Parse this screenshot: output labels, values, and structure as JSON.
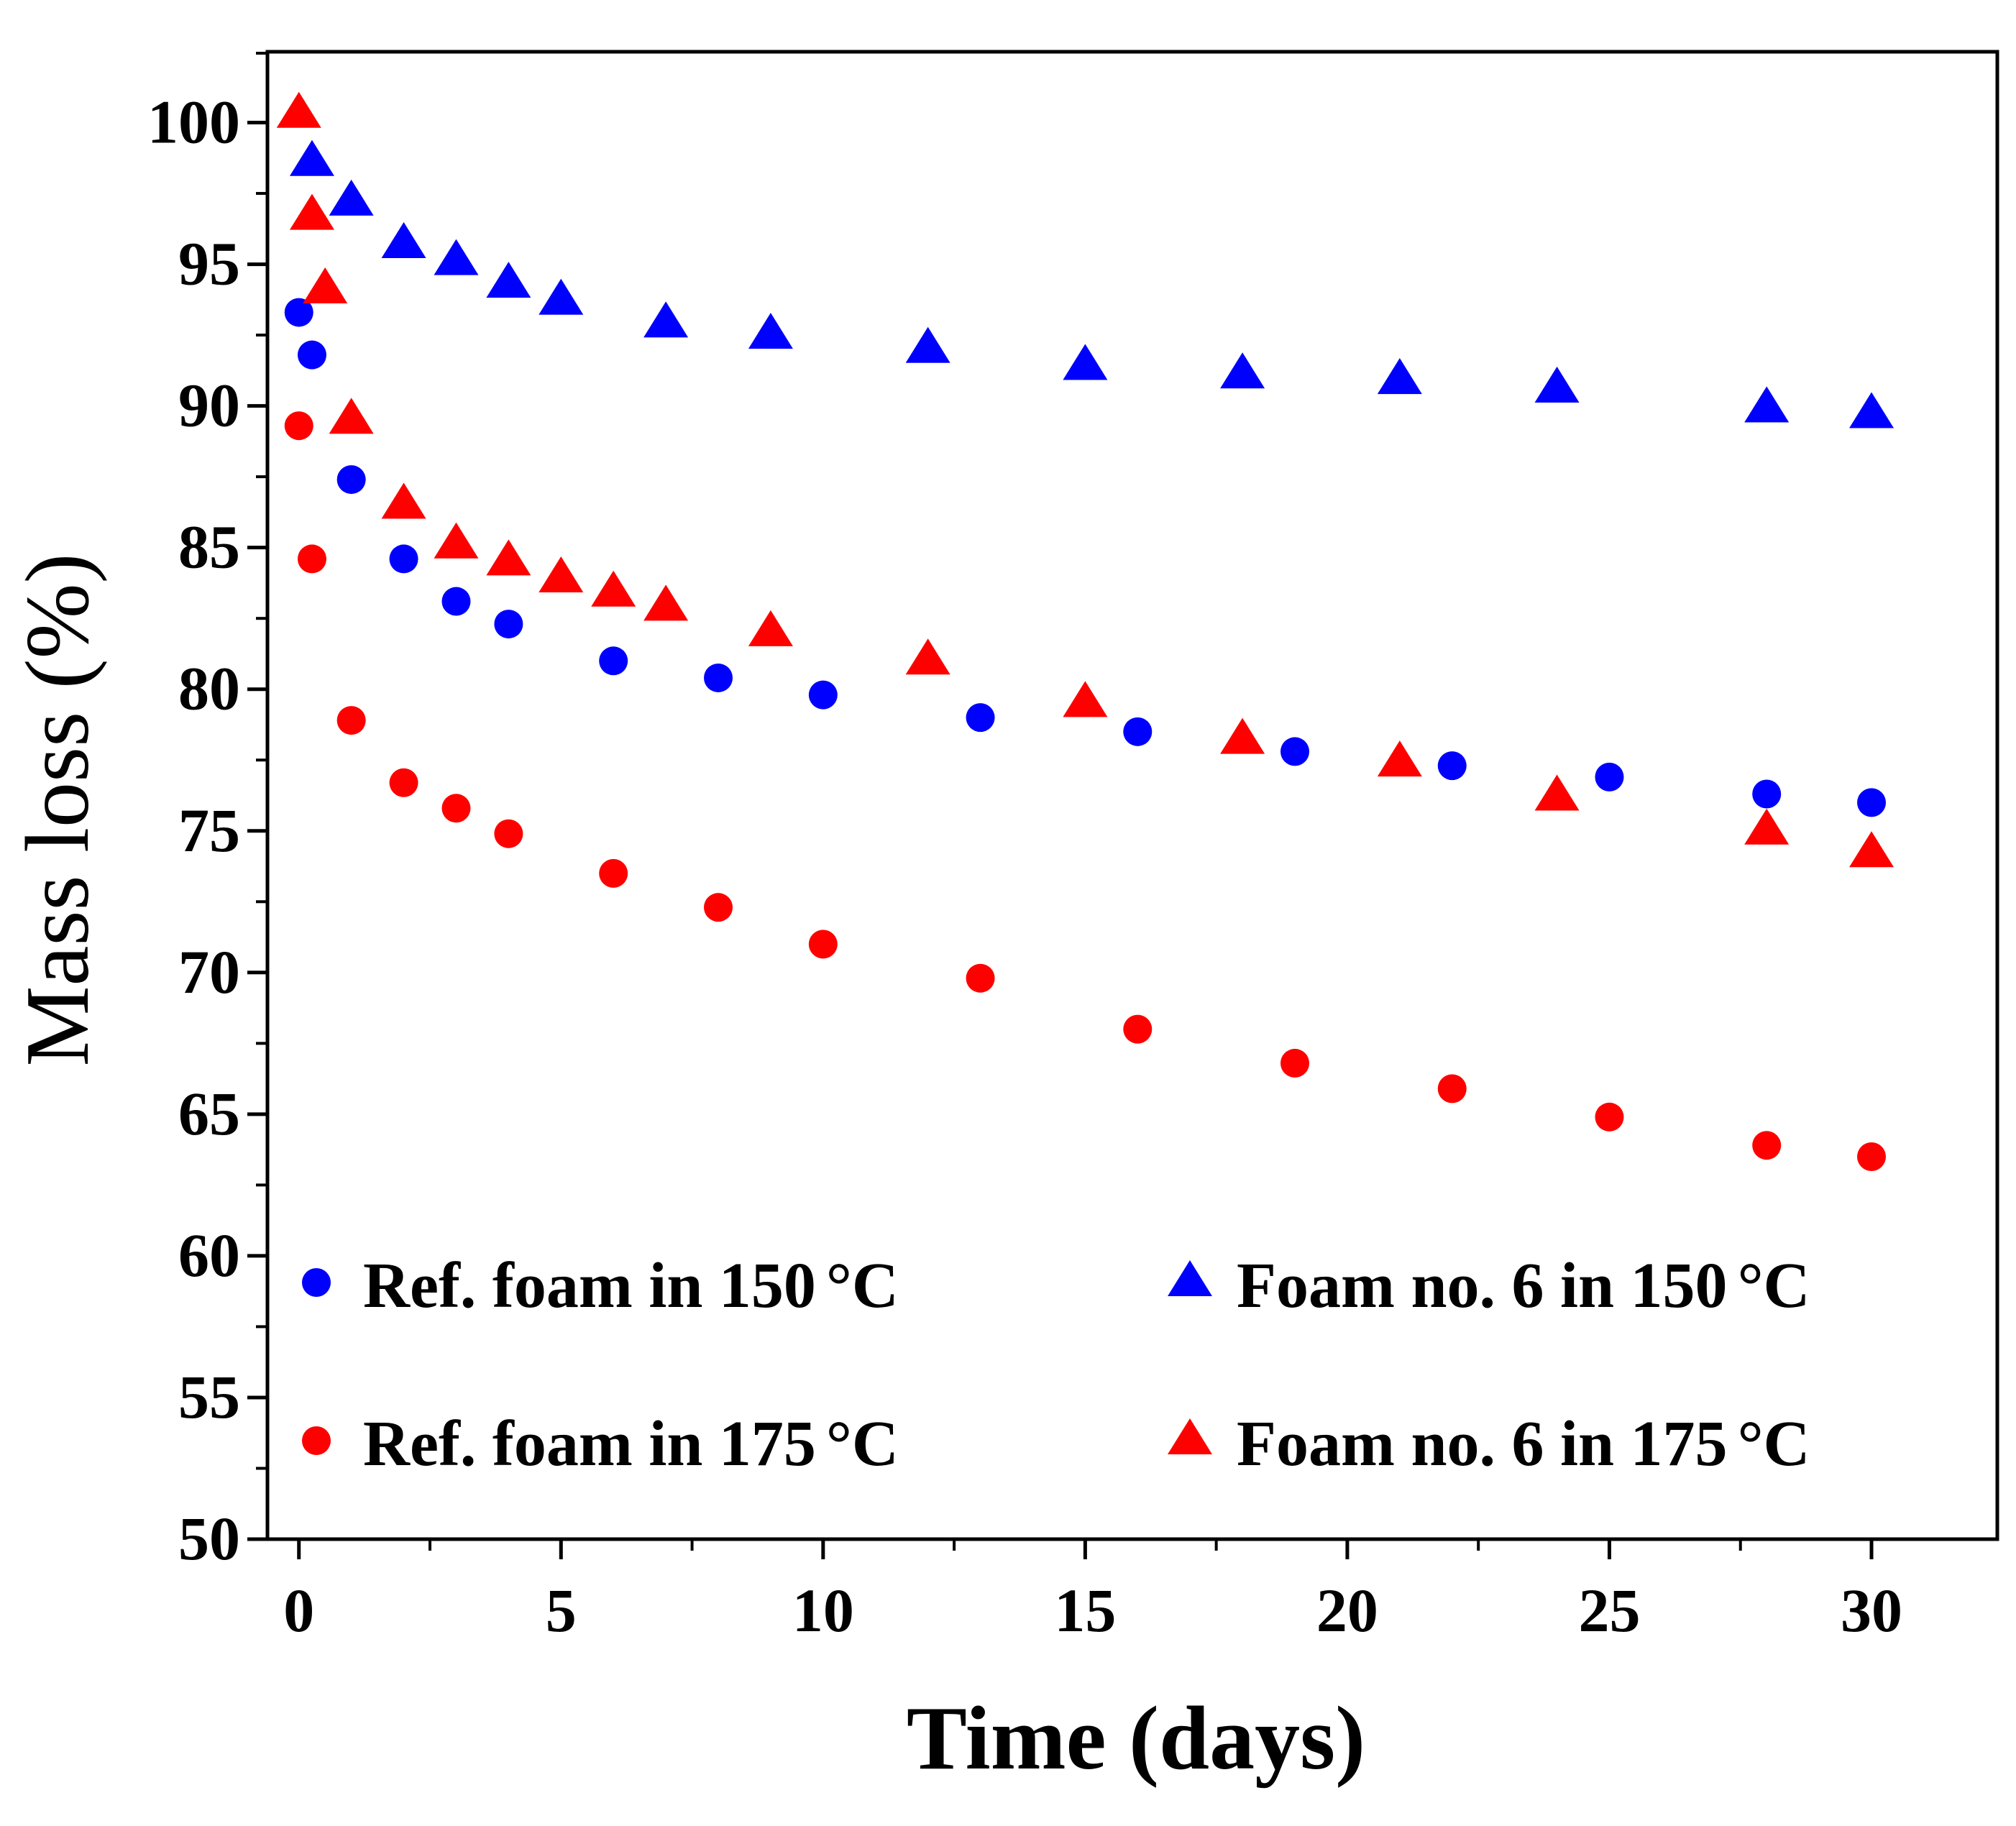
{
  "chart_data": {
    "type": "scatter",
    "title": "",
    "xlabel": "Time (days)",
    "ylabel": "Mass loss (%)",
    "xlim": [
      -0.6,
      32.4
    ],
    "ylim": [
      50,
      102.5
    ],
    "xticks": [
      0,
      5,
      10,
      15,
      20,
      25,
      30
    ],
    "yticks": [
      50,
      55,
      60,
      65,
      70,
      75,
      80,
      85,
      90,
      95,
      100
    ],
    "grid": false,
    "legend_position": "bottom-inside",
    "series": [
      {
        "name": "Ref. foam in 150",
        "unit": "°C",
        "marker": "circle",
        "color": "#0000ff",
        "x": [
          0,
          0.25,
          1,
          2,
          3,
          4,
          6,
          8,
          10,
          13,
          16,
          19,
          22,
          25,
          28,
          30
        ],
        "y": [
          93.3,
          91.8,
          87.4,
          84.6,
          83.1,
          82.3,
          81.0,
          80.4,
          79.8,
          79.0,
          78.5,
          77.8,
          77.3,
          76.9,
          76.3,
          76.0
        ]
      },
      {
        "name": "Foam no. 6 in 150",
        "unit": "°C",
        "marker": "triangle",
        "color": "#0000ff",
        "x": [
          0.25,
          1,
          2,
          3,
          4,
          5,
          7,
          9,
          12,
          15,
          18,
          21,
          24,
          28,
          30
        ],
        "y": [
          98.6,
          97.2,
          95.7,
          95.1,
          94.3,
          93.7,
          92.9,
          92.5,
          92.0,
          91.4,
          91.1,
          90.9,
          90.6,
          89.9,
          89.7
        ]
      },
      {
        "name": "Ref. foam in 175",
        "unit": "°C",
        "marker": "circle",
        "color": "#ff0000",
        "x": [
          0,
          0.25,
          1,
          2,
          3,
          4,
          6,
          8,
          10,
          13,
          16,
          19,
          22,
          25,
          28,
          30
        ],
        "y": [
          89.3,
          84.6,
          78.9,
          76.7,
          75.8,
          74.9,
          73.5,
          72.3,
          71.0,
          69.8,
          68.0,
          66.8,
          65.9,
          64.9,
          63.9,
          63.5
        ]
      },
      {
        "name": "Foam no. 6 in 175",
        "unit": "°C",
        "marker": "triangle",
        "color": "#ff0000",
        "x": [
          0,
          0.25,
          0.5,
          1,
          2,
          3,
          4,
          5,
          6,
          7,
          9,
          12,
          15,
          18,
          21,
          24,
          28,
          30
        ],
        "y": [
          100.3,
          96.7,
          94.1,
          89.5,
          86.5,
          85.1,
          84.5,
          83.9,
          83.4,
          82.9,
          82.0,
          81.0,
          79.5,
          78.2,
          77.4,
          76.2,
          75.0,
          74.2
        ]
      }
    ]
  }
}
